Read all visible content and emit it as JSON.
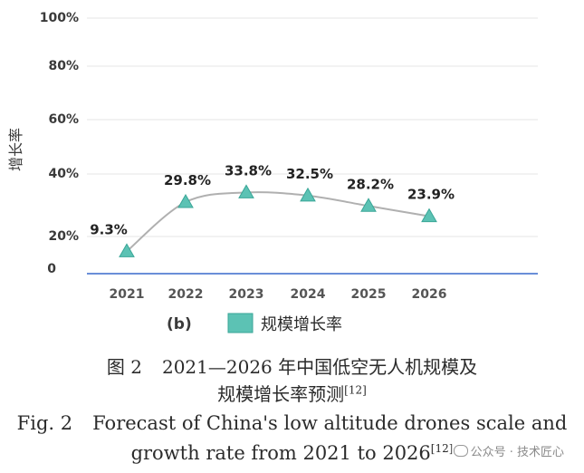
{
  "chart_data": {
    "type": "line",
    "categories": [
      "2021",
      "2022",
      "2023",
      "2024",
      "2025",
      "2026"
    ],
    "series": [
      {
        "name": "规模增长率",
        "values": [
          9.3,
          29.8,
          33.8,
          32.5,
          28.2,
          23.9
        ]
      }
    ],
    "data_labels": [
      "9.3%",
      "29.8%",
      "33.8%",
      "32.5%",
      "28.2%",
      "23.9%"
    ],
    "ylabel": "增长率",
    "xlabel": "",
    "yticks": [
      "0",
      "20%",
      "40%",
      "60%",
      "80%",
      "100%"
    ],
    "ylim": [
      0,
      100
    ],
    "grid": true,
    "legend_position": "bottom",
    "panel_label": "(b)",
    "marker": "triangle",
    "colors": {
      "line": "#b0b0b0",
      "marker": "#5cc2b4",
      "axis": "#6a8fd8",
      "grid": "#e4e4e4",
      "text": "#3a3a3a"
    }
  },
  "caption": {
    "cn_prefix": "图 2",
    "cn_line1": "2021—2026 年中国低空无人机规模及",
    "cn_line2": "规模增长率预测",
    "cn_ref": "[12]",
    "en_prefix": "Fig. 2",
    "en_line1": "Forecast of China's low altitude drones scale and",
    "en_line2": "growth rate from 2021 to 2026",
    "en_ref": "[12]"
  },
  "watermark": {
    "text": "公众号 · 技术匠心",
    "icon": "wechat-icon"
  }
}
